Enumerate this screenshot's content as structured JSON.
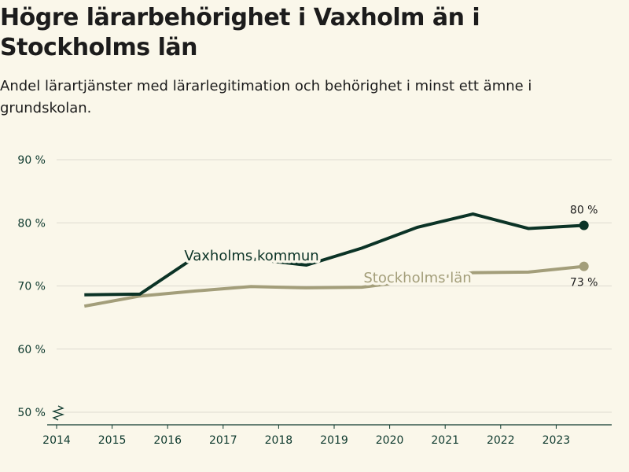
{
  "title": "Högre lärarbehörighet i Vaxholm än i Stockholms län",
  "subtitle": "Andel lärartjänster med lärarlegitimation och behörighet i minst ett ämne i grundskolan.",
  "colors": {
    "background": "#faf7ea",
    "vaxholm": "#0b3326",
    "stockholm": "#a39e7a",
    "grid": "#dedbd0",
    "axis": "#0e3a2e"
  },
  "chart_data": {
    "type": "line",
    "title": "Högre lärarbehörighet i Vaxholm än i Stockholms län",
    "xlabel": "",
    "ylabel": "",
    "x": [
      2014,
      2015,
      2016,
      2017,
      2018,
      2019,
      2020,
      2021,
      2022,
      2023
    ],
    "x_tick_labels": [
      "2014",
      "2015",
      "2016",
      "2017",
      "2018",
      "2019",
      "2020",
      "2021",
      "2022",
      "2023"
    ],
    "y_ticks": [
      50,
      60,
      70,
      80,
      90
    ],
    "y_tick_labels": [
      "50 %",
      "60 %",
      "70 %",
      "80 %",
      "90 %"
    ],
    "ylim": [
      48,
      90
    ],
    "axis_break": true,
    "series": [
      {
        "name": "Vaxholms kommun",
        "values": [
          68.6,
          68.7,
          74.6,
          74.3,
          73.3,
          76.0,
          79.3,
          81.4,
          79.1,
          79.6
        ],
        "end_label": "80 %"
      },
      {
        "name": "Stockholms län",
        "values": [
          66.8,
          68.4,
          69.2,
          69.9,
          69.7,
          69.8,
          70.9,
          72.1,
          72.2,
          73.1
        ],
        "end_label": "73 %"
      }
    ]
  }
}
